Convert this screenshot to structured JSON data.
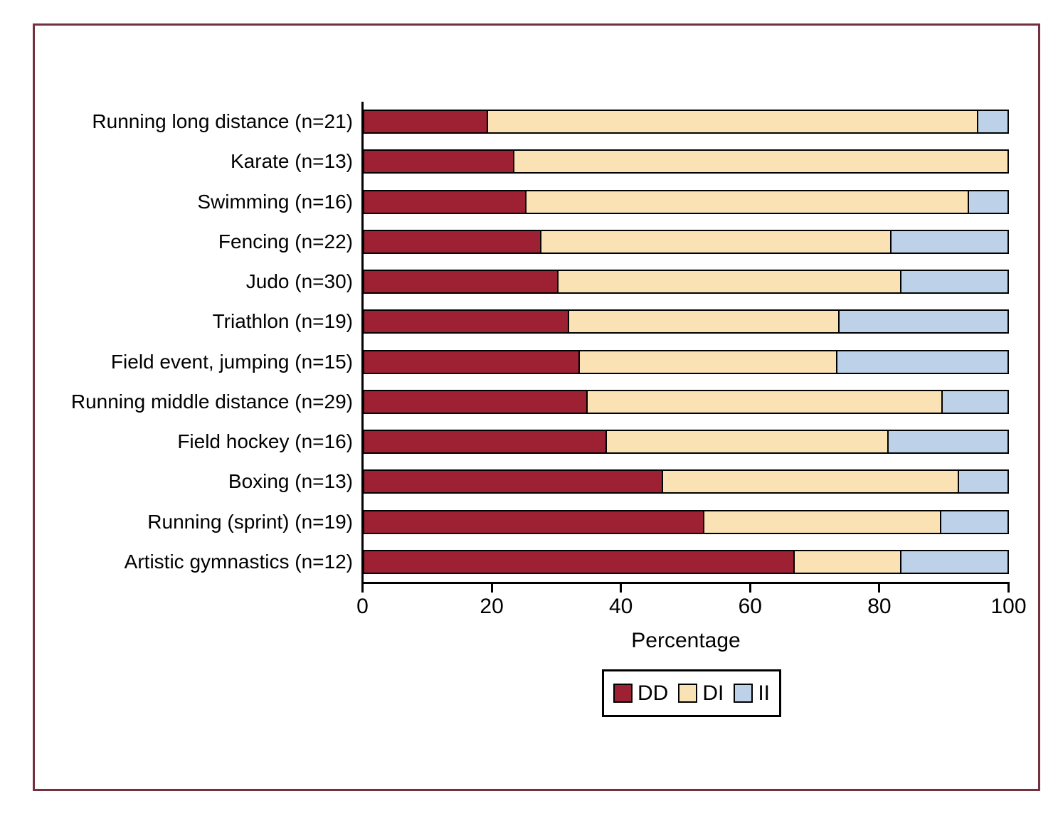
{
  "figure": {
    "frame_color": "#73303F",
    "background": "#ffffff"
  },
  "chart_data": {
    "type": "bar",
    "orientation": "horizontal",
    "stacked": true,
    "title": "",
    "xlabel": "Percentage",
    "ylabel": "",
    "xlim": [
      0,
      100
    ],
    "xticks": [
      0,
      20,
      40,
      60,
      80,
      100
    ],
    "grid": false,
    "legend_position": "bottom",
    "categories": [
      "Running long distance (n=21)",
      "Karate (n=13)",
      "Swimming (n=16)",
      "Fencing (n=22)",
      "Judo (n=30)",
      "Triathlon (n=19)",
      "Field event, jumping (n=15)",
      "Running middle distance (n=29)",
      "Field hockey (n=16)",
      "Boxing (n=13)",
      "Running (sprint) (n=19)",
      "Artistic gymnastics (n=12)"
    ],
    "series": [
      {
        "name": "DD",
        "color": "#9E2033",
        "values": [
          19.0,
          23.1,
          25.0,
          27.3,
          30.0,
          31.6,
          33.3,
          34.5,
          37.5,
          46.2,
          52.6,
          66.7
        ]
      },
      {
        "name": "DI",
        "color": "#FAE2B5",
        "values": [
          76.2,
          76.9,
          68.8,
          54.5,
          53.3,
          42.1,
          40.0,
          55.2,
          43.8,
          46.1,
          36.9,
          16.6
        ]
      },
      {
        "name": "II",
        "color": "#BDD2E8",
        "values": [
          4.8,
          0.0,
          6.2,
          18.2,
          16.7,
          26.3,
          26.7,
          10.3,
          18.7,
          7.7,
          10.5,
          16.7
        ]
      }
    ]
  }
}
